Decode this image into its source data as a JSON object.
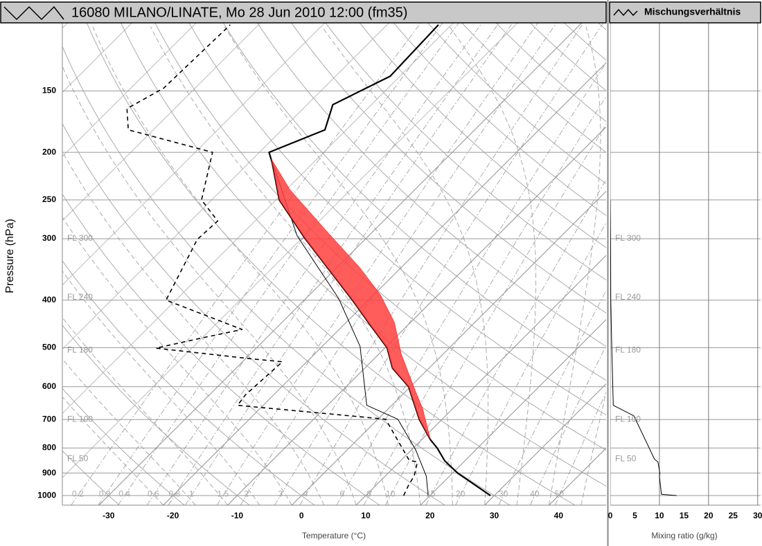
{
  "chart_data": [
    {
      "type": "skewt",
      "title": "16080 MILANO/LINATE, Mo 28 Jun 2010 12:00 (fm35)",
      "xlabel": "Temperature (°C)",
      "ylabel": "Pressure (hPa)",
      "xlim": [
        -37.2,
        47.4
      ],
      "ylim": [
        1046,
        109
      ],
      "log_y": true,
      "xticks": [
        -30,
        -20,
        -10,
        0,
        10,
        20,
        30,
        40
      ],
      "yticks": [
        150,
        200,
        250,
        300,
        400,
        500,
        600,
        700,
        800,
        900,
        1000
      ],
      "mixing_ratio_lines": [
        0.2,
        0.3,
        0.4,
        0.6,
        0.8,
        1,
        1.5,
        2,
        3,
        4,
        6,
        8,
        10,
        15,
        20,
        30,
        40,
        50
      ],
      "annotations": [
        {
          "text": "FL 300",
          "pressure": 300
        },
        {
          "text": "FL 240",
          "pressure": 395
        },
        {
          "text": "FL 180",
          "pressure": 506
        },
        {
          "text": "FL 100",
          "pressure": 700
        },
        {
          "text": "FL 50",
          "pressure": 843
        }
      ],
      "series": [
        {
          "color": "#000000",
          "width": 2.2,
          "pressure": [
            1000,
            900,
            850,
            800,
            770,
            700,
            600,
            550,
            500,
            450,
            400,
            300,
            250,
            210,
            200,
            180,
            160,
            140,
            110
          ],
          "values": [
            29.4,
            20.8,
            16.9,
            13.7,
            11.4,
            6.5,
            -0.3,
            -5.7,
            -9.7,
            -15.8,
            -22.5,
            -39.4,
            -49.5,
            -56.4,
            -58.5,
            -53.3,
            -56,
            -51.5,
            -52
          ]
        },
        {
          "color": "#000000",
          "width": 1.6,
          "dashed": true,
          "pressure": [
            1000,
            950,
            913,
            854,
            848,
            699,
            692,
            655,
            624,
            534,
            527,
            501,
            479,
            459,
            400,
            301,
            276,
            250,
            200,
            180,
            163,
            148,
            110
          ],
          "values": [
            15.9,
            15,
            14.5,
            12.8,
            11.3,
            1.2,
            -2.6,
            -24,
            -24.4,
            -23.8,
            -28.9,
            -45.6,
            -40.4,
            -35.1,
            -51.5,
            -56.1,
            -55.8,
            -61.6,
            -67.3,
            -83.9,
            -87.4,
            -84.9,
            -84.4
          ]
        },
        {
          "color": "#000000",
          "width": 1,
          "pressure": [
            1000,
            913,
            808,
            699,
            655,
            497,
            397,
            296,
            206
          ],
          "values": [
            19.7,
            16.4,
            10.7,
            3.1,
            -3.9,
            -14.1,
            -24.9,
            -41.1,
            -57.2
          ]
        },
        {
          "color": "#000000",
          "width": 1,
          "fill": "#ff4040",
          "pressure": [
            770,
            665,
            604,
            514,
            444,
            390,
            343,
            287,
            238,
            206
          ],
          "values": [
            11.4,
            5.3,
            0.8,
            -6.6,
            -12.5,
            -19,
            -26.5,
            -37.8,
            -49.5,
            -57.2
          ]
        }
      ]
    },
    {
      "type": "line",
      "title": "Mischungsverhältnis",
      "xlabel": "Mixing ratio (g/kg)",
      "xlim": [
        0,
        30.6
      ],
      "ylim": [
        1046,
        109
      ],
      "log_y": true,
      "xticks": [
        0,
        5,
        10,
        15,
        20,
        25,
        30
      ],
      "xgrid": [
        0,
        10,
        20,
        30
      ],
      "series": [
        {
          "color": "#000000",
          "width": 1,
          "pressure": [
            1000,
            994,
            913,
            900,
            854,
            843,
            688,
            655,
            497,
            400,
            300,
            250
          ],
          "values": [
            13.5,
            10.4,
            10,
            10.1,
            9.7,
            9,
            4.8,
            0.6,
            0.3,
            0.1,
            0.05,
            0
          ]
        }
      ]
    }
  ]
}
